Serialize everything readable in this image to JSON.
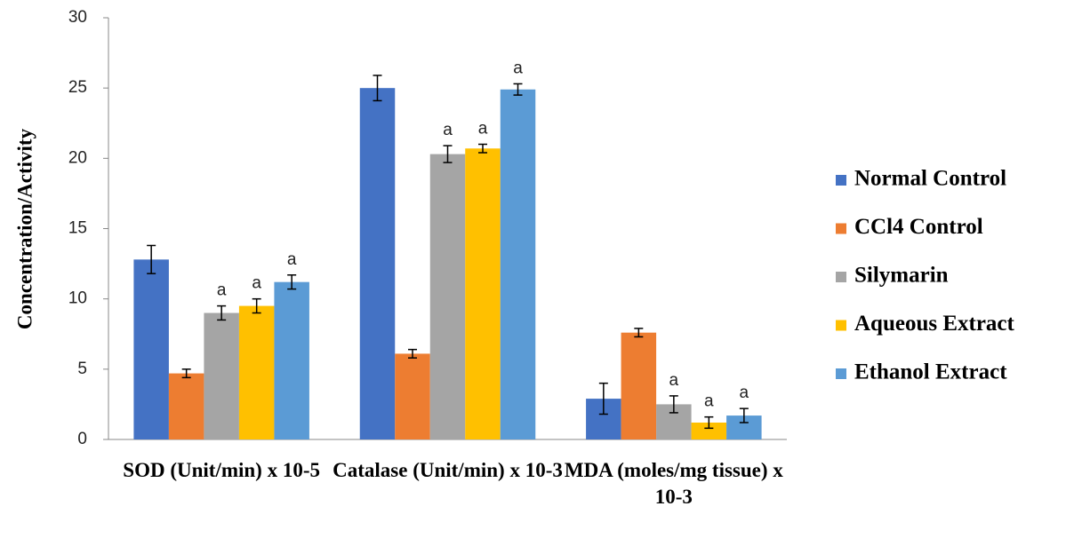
{
  "chart_data": {
    "type": "bar",
    "y_label": "Concentration/Activity",
    "categories": [
      "SOD (Unit/min) x 10-5",
      "Catalase (Unit/min) x 10-3",
      "MDA (moles/mg tissue) x 10-3"
    ],
    "series": [
      {
        "name": "Normal Control",
        "color": "#4472c4",
        "values": [
          12.8,
          25.0,
          2.9
        ],
        "errors": [
          1.0,
          0.9,
          1.1
        ]
      },
      {
        "name": "CCl4 Control",
        "color": "#ed7d31",
        "values": [
          4.7,
          6.1,
          7.6
        ],
        "errors": [
          0.3,
          0.3,
          0.3
        ]
      },
      {
        "name": "Silymarin",
        "color": "#a5a5a5",
        "values": [
          9.0,
          20.3,
          2.5
        ],
        "errors": [
          0.5,
          0.6,
          0.6
        ],
        "annotations": [
          "a",
          "a",
          "a"
        ]
      },
      {
        "name": "Aqueous Extract",
        "color": "#ffc000",
        "values": [
          9.5,
          20.7,
          1.2
        ],
        "errors": [
          0.5,
          0.3,
          0.4
        ],
        "annotations": [
          "a",
          "a",
          "a"
        ]
      },
      {
        "name": "Ethanol Extract",
        "color": "#5b9bd5",
        "values": [
          11.2,
          24.9,
          1.7
        ],
        "errors": [
          0.5,
          0.4,
          0.5
        ],
        "annotations": [
          "a",
          "a",
          "a"
        ]
      }
    ],
    "ylim": [
      0,
      30
    ],
    "yticks": [
      0,
      5,
      10,
      15,
      20,
      25,
      30
    ],
    "grid": false,
    "legend": "right"
  }
}
